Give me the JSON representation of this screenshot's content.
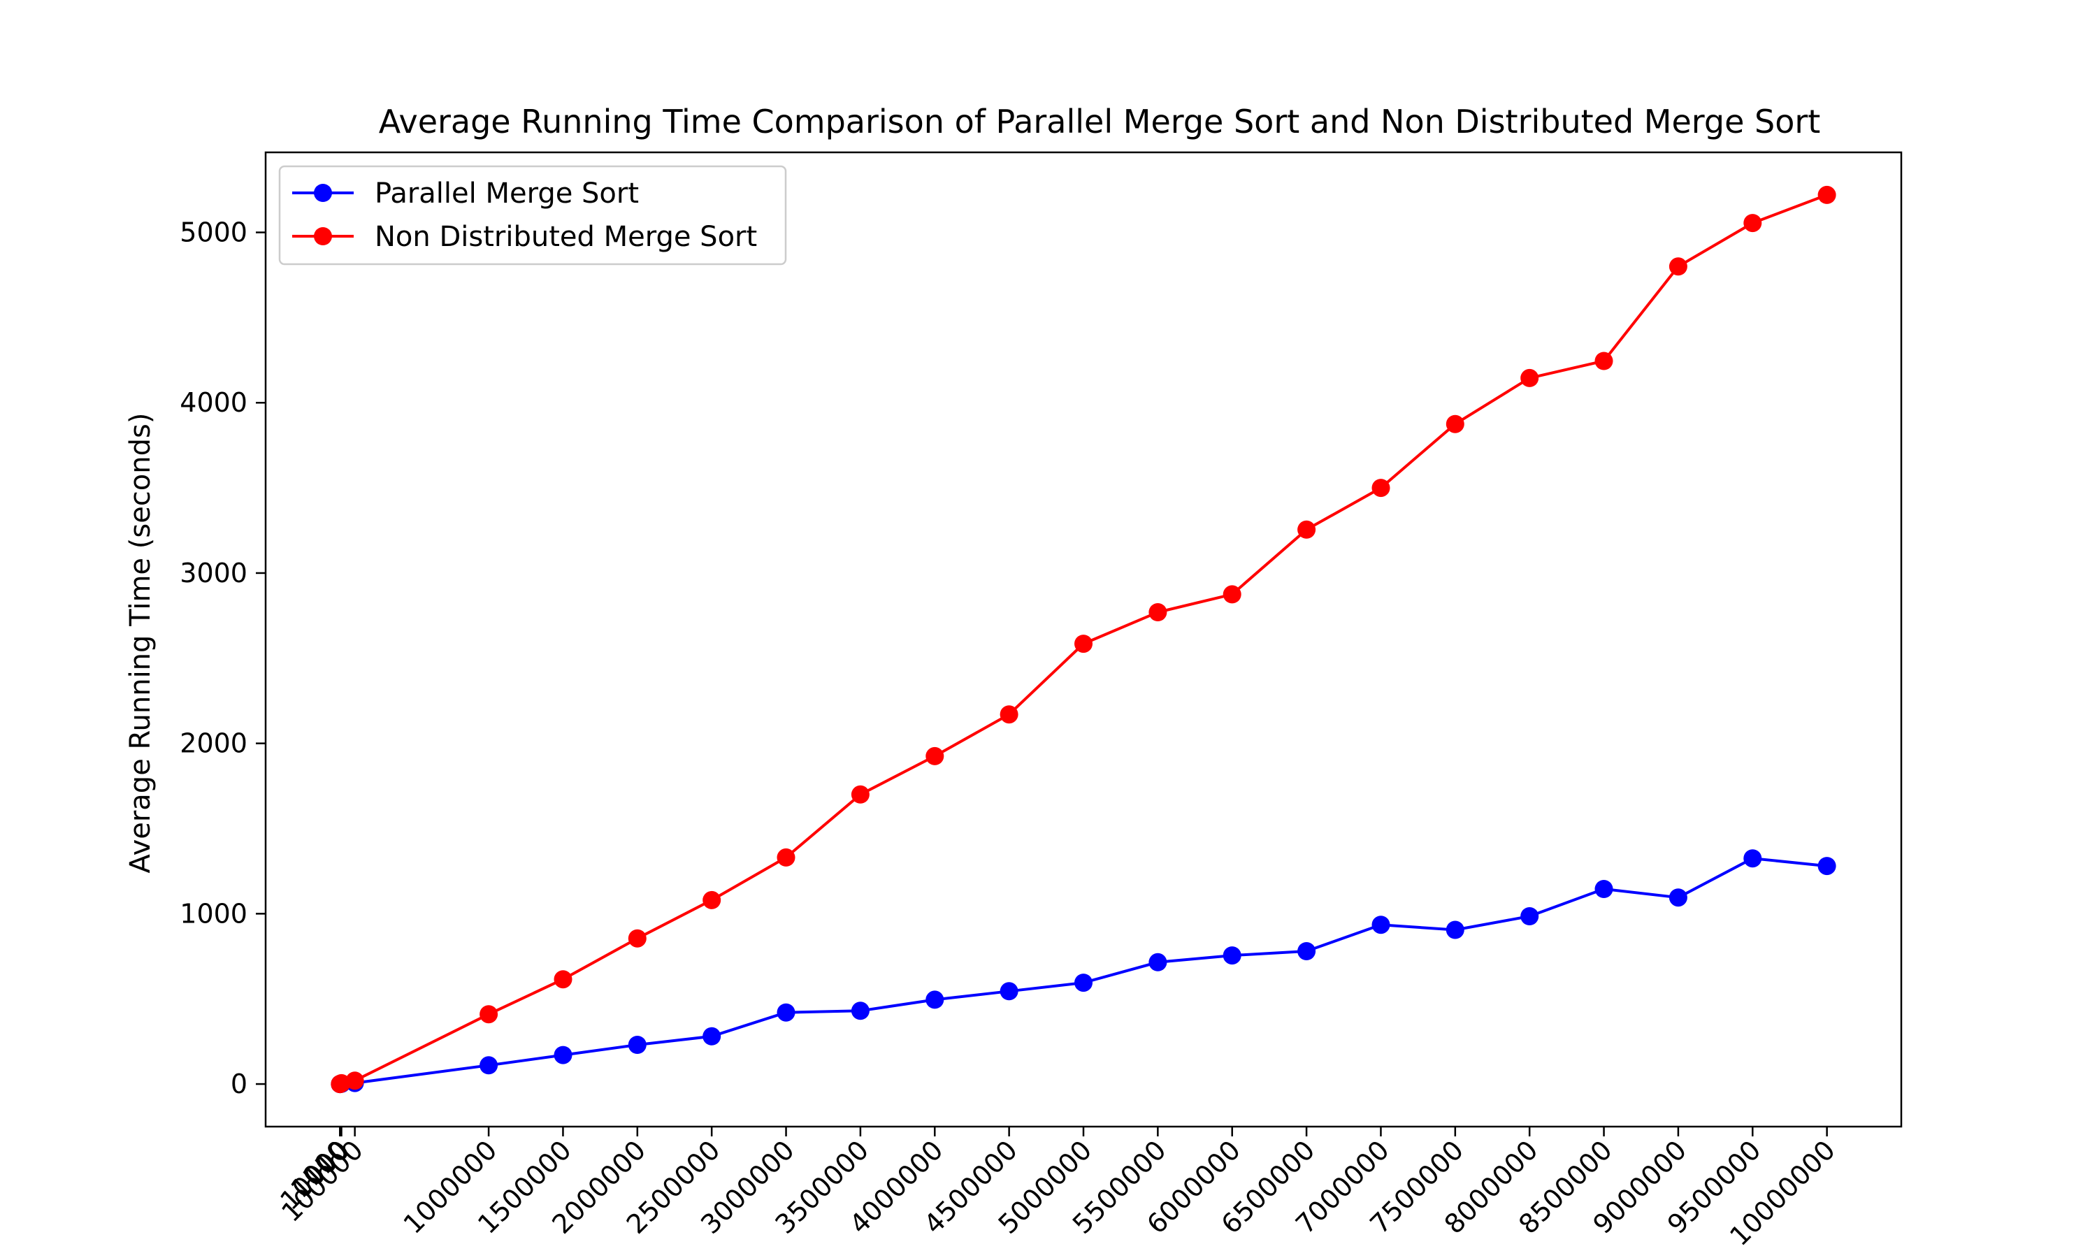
{
  "chart_data": {
    "type": "line",
    "title": "Average Running Time Comparison of Parallel Merge Sort and Non Distributed Merge Sort",
    "xlabel": "",
    "ylabel": "Average Running Time (seconds)",
    "x_tick_labels": [
      "10",
      "100",
      "1000",
      "10000",
      "100000",
      "1000000",
      "1500000",
      "2000000",
      "2500000",
      "3000000",
      "3500000",
      "4000000",
      "4500000",
      "5000000",
      "5500000",
      "6000000",
      "6500000",
      "7000000",
      "7500000",
      "8000000",
      "8500000",
      "9000000",
      "9500000",
      "10000000"
    ],
    "x": [
      10,
      100,
      1000,
      10000,
      100000,
      1000000,
      1500000,
      2000000,
      2500000,
      3000000,
      3500000,
      4000000,
      4500000,
      5000000,
      5500000,
      6000000,
      6500000,
      7000000,
      7500000,
      8000000,
      8500000,
      9000000,
      9500000,
      10000000
    ],
    "y_ticks": [
      0,
      1000,
      2000,
      3000,
      4000,
      5000
    ],
    "xlim": [
      -500000,
      10500000
    ],
    "ylim": [
      -250,
      5470
    ],
    "grid": false,
    "legend_position": "top-left",
    "series": [
      {
        "name": "Parallel Merge Sort",
        "color": "#0000ff",
        "values": [
          0,
          0,
          0,
          1,
          6,
          110,
          170,
          230,
          280,
          420,
          430,
          495,
          545,
          595,
          715,
          755,
          780,
          935,
          905,
          985,
          1145,
          1095,
          1325,
          1280
        ]
      },
      {
        "name": "Non Distributed Merge Sort",
        "color": "#ff0000",
        "values": [
          0,
          0,
          1,
          5,
          20,
          410,
          615,
          855,
          1080,
          1330,
          1700,
          1925,
          2170,
          2585,
          2770,
          2875,
          3255,
          3500,
          3875,
          4145,
          4245,
          4800,
          5055,
          5220
        ]
      }
    ]
  }
}
